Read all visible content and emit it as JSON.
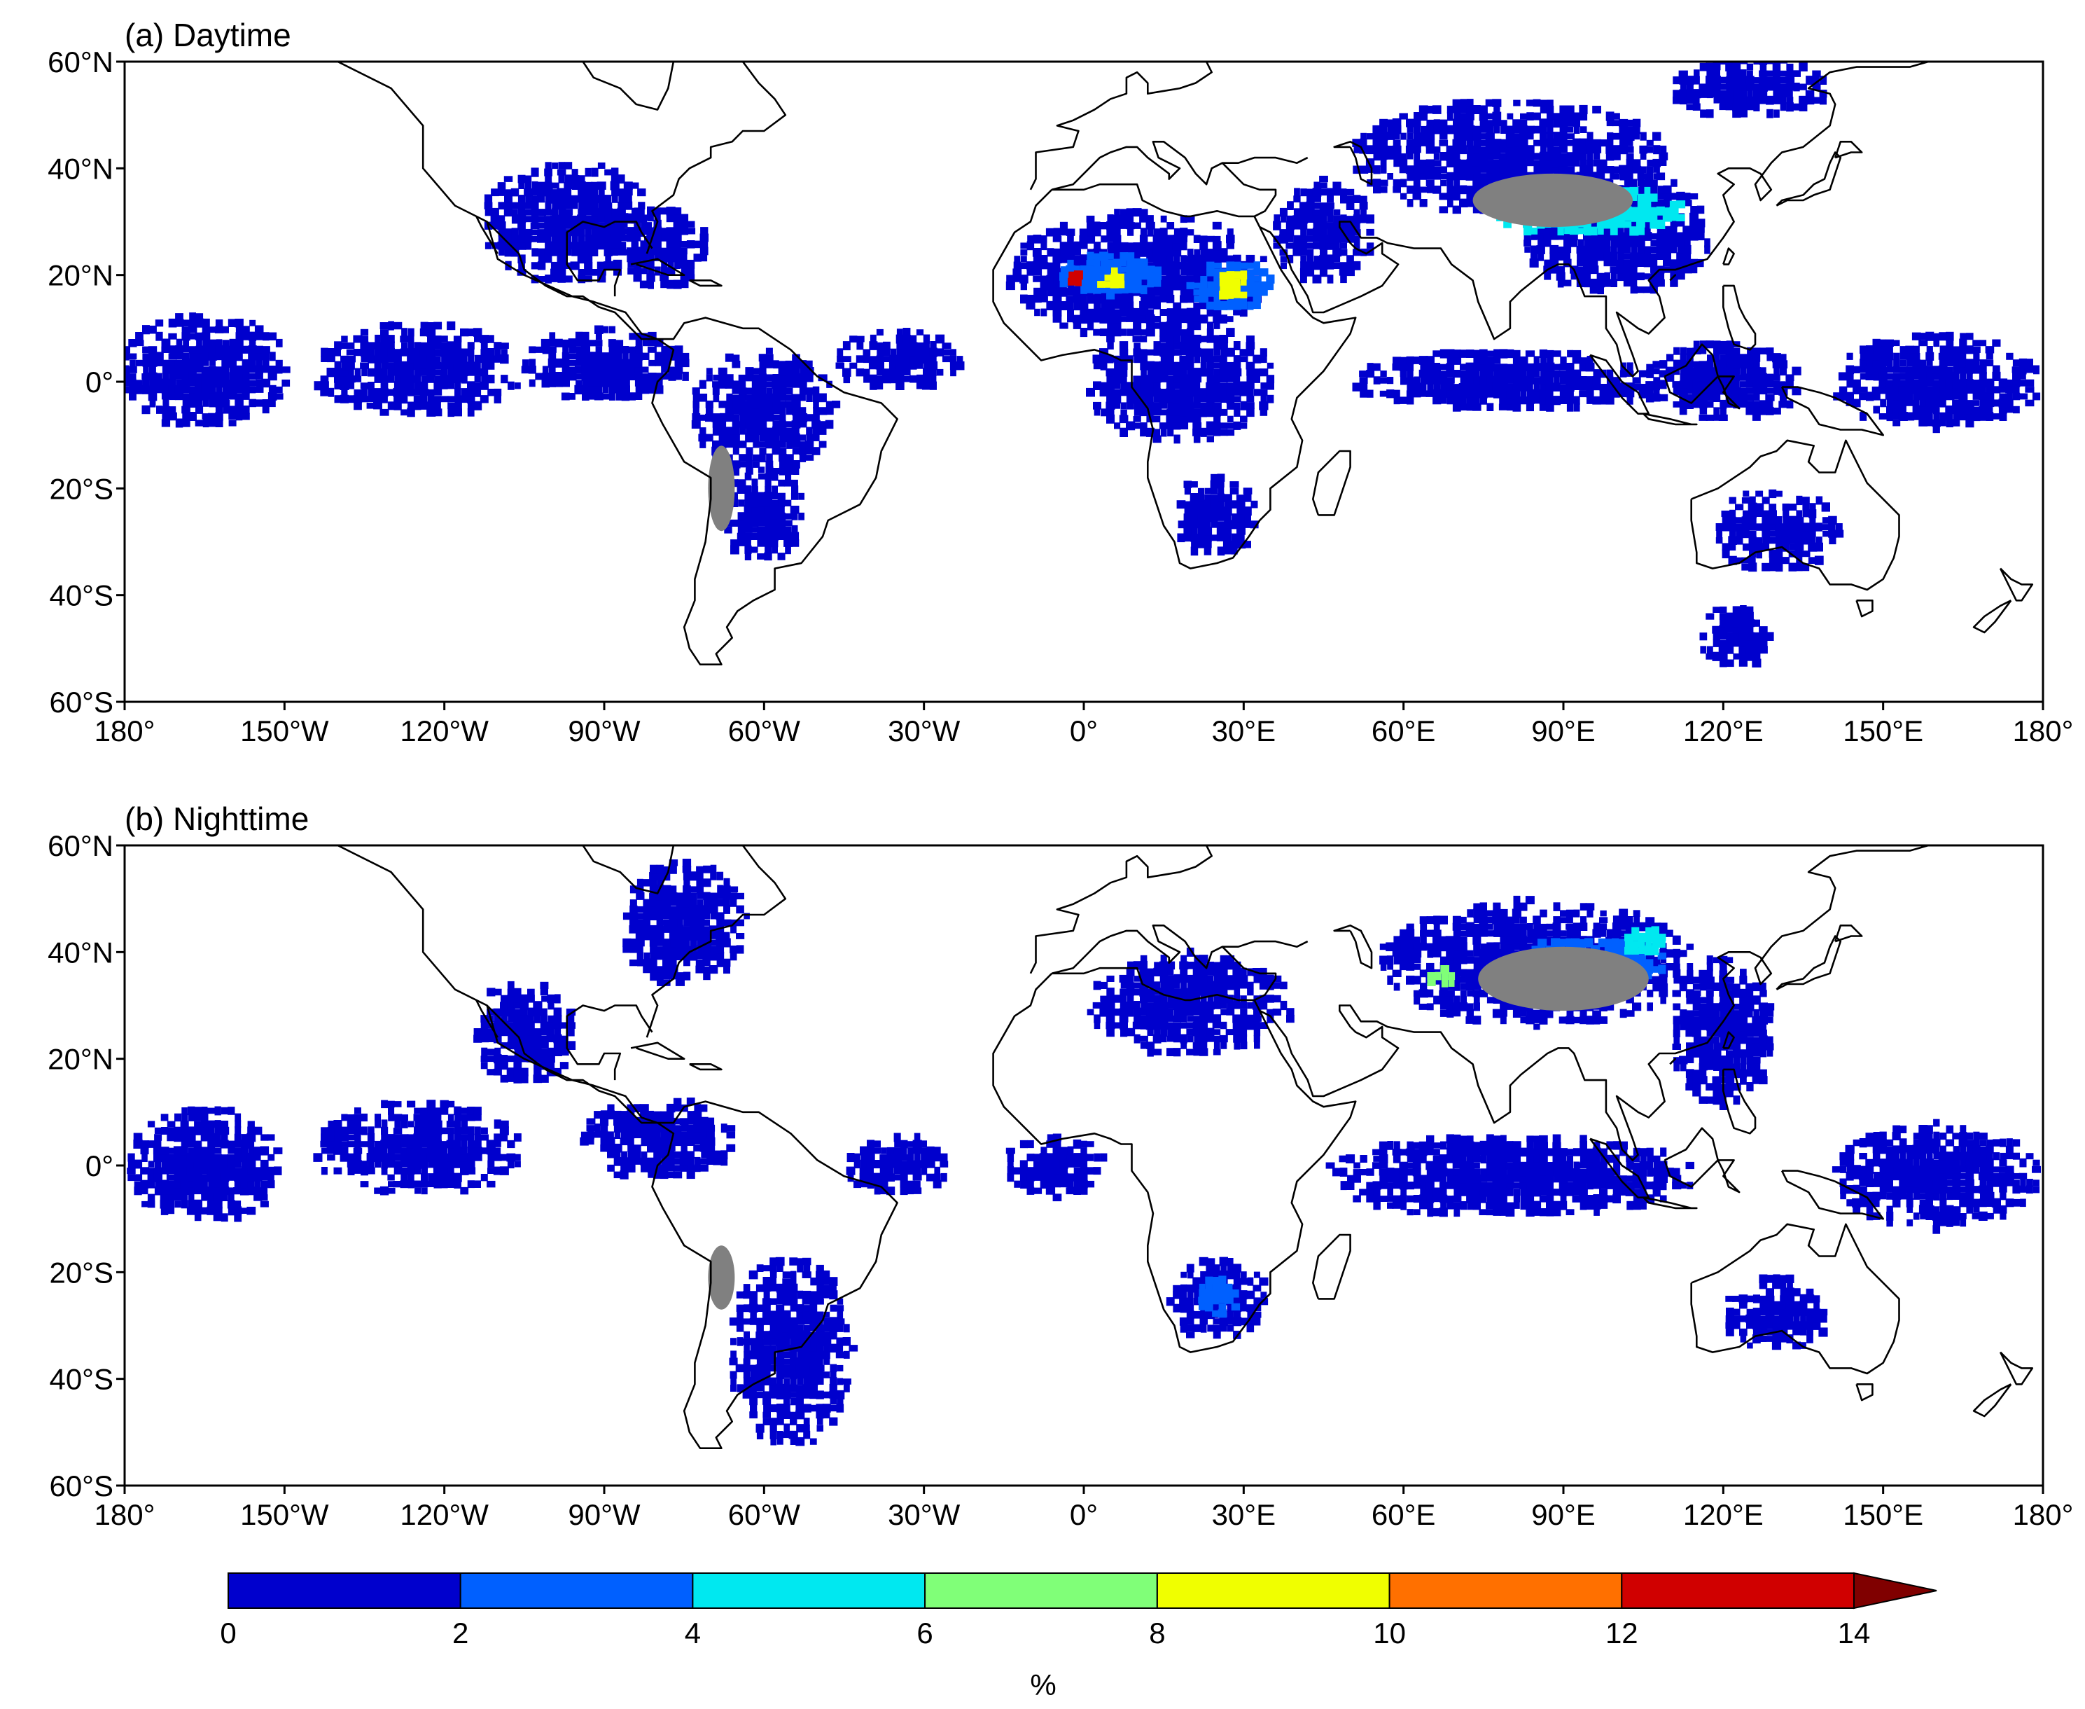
{
  "panels": [
    {
      "title": "(a) Daytime",
      "blobs": [
        {
          "lon": -97,
          "lat": 30,
          "rx": 16,
          "ry": 12,
          "v": 1
        },
        {
          "lon": -80,
          "lat": 25,
          "rx": 10,
          "ry": 8,
          "v": 1
        },
        {
          "lon": -165,
          "lat": 2,
          "rx": 16,
          "ry": 11,
          "v": 1
        },
        {
          "lon": -125,
          "lat": 2,
          "rx": 20,
          "ry": 9,
          "v": 1
        },
        {
          "lon": -90,
          "lat": 3,
          "rx": 16,
          "ry": 7,
          "v": 1
        },
        {
          "lon": -60,
          "lat": -6,
          "rx": 14,
          "ry": 12,
          "v": 1
        },
        {
          "lon": -60,
          "lat": -25,
          "rx": 8,
          "ry": 9,
          "v": 1
        },
        {
          "lon": -35,
          "lat": 4,
          "rx": 12,
          "ry": 6,
          "v": 1
        },
        {
          "lon": 10,
          "lat": 20,
          "rx": 25,
          "ry": 12,
          "v": 1
        },
        {
          "lon": 18,
          "lat": 0,
          "rx": 18,
          "ry": 12,
          "v": 1
        },
        {
          "lon": 25,
          "lat": -25,
          "rx": 8,
          "ry": 8,
          "v": 1
        },
        {
          "lon": 45,
          "lat": 28,
          "rx": 10,
          "ry": 10,
          "v": 1
        },
        {
          "lon": 80,
          "lat": 42,
          "rx": 30,
          "ry": 11,
          "v": 1
        },
        {
          "lon": 100,
          "lat": 28,
          "rx": 18,
          "ry": 12,
          "v": 1
        },
        {
          "lon": 80,
          "lat": 0,
          "rx": 30,
          "ry": 6,
          "v": 1
        },
        {
          "lon": 120,
          "lat": 0,
          "rx": 15,
          "ry": 8,
          "v": 1
        },
        {
          "lon": 160,
          "lat": 0,
          "rx": 20,
          "ry": 9,
          "v": 1
        },
        {
          "lon": 125,
          "lat": 55,
          "rx": 15,
          "ry": 6,
          "v": 1
        },
        {
          "lon": 130,
          "lat": -28,
          "rx": 12,
          "ry": 8,
          "v": 1
        },
        {
          "lon": 122,
          "lat": -48,
          "rx": 7,
          "ry": 6,
          "v": 1
        },
        {
          "lon": 5,
          "lat": 20,
          "rx": 10,
          "ry": 4,
          "v": 2
        },
        {
          "lon": 28,
          "lat": 18,
          "rx": 8,
          "ry": 5,
          "v": 2
        },
        {
          "lon": 95,
          "lat": 32,
          "rx": 18,
          "ry": 5,
          "v": 3
        },
        {
          "lon": 5,
          "lat": 19,
          "rx": 3,
          "ry": 2,
          "v": 5
        },
        {
          "lon": 28,
          "lat": 18,
          "rx": 3,
          "ry": 3,
          "v": 5
        },
        {
          "lon": -2,
          "lat": 19,
          "rx": 1.5,
          "ry": 1.5,
          "v": 7
        }
      ],
      "gray_areas": [
        {
          "lon": 88,
          "lat": 34,
          "rx": 15,
          "ry": 5
        },
        {
          "lon": -68,
          "lat": -20,
          "rx": 2.5,
          "ry": 8
        }
      ]
    },
    {
      "title": "(b) Nighttime",
      "blobs": [
        {
          "lon": -75,
          "lat": 45,
          "rx": 12,
          "ry": 12,
          "v": 1
        },
        {
          "lon": -105,
          "lat": 25,
          "rx": 10,
          "ry": 10,
          "v": 1
        },
        {
          "lon": -165,
          "lat": 0,
          "rx": 15,
          "ry": 11,
          "v": 1
        },
        {
          "lon": -125,
          "lat": 3,
          "rx": 20,
          "ry": 9,
          "v": 1
        },
        {
          "lon": -80,
          "lat": 5,
          "rx": 15,
          "ry": 8,
          "v": 1
        },
        {
          "lon": -35,
          "lat": 0,
          "rx": 10,
          "ry": 6,
          "v": 1
        },
        {
          "lon": -55,
          "lat": -35,
          "rx": 12,
          "ry": 18,
          "v": 1
        },
        {
          "lon": -5,
          "lat": 0,
          "rx": 10,
          "ry": 6,
          "v": 1
        },
        {
          "lon": 25,
          "lat": -25,
          "rx": 10,
          "ry": 8,
          "v": 1
        },
        {
          "lon": 20,
          "lat": 30,
          "rx": 20,
          "ry": 10,
          "v": 1
        },
        {
          "lon": 85,
          "lat": 38,
          "rx": 30,
          "ry": 12,
          "v": 1
        },
        {
          "lon": 80,
          "lat": -2,
          "rx": 35,
          "ry": 8,
          "v": 1
        },
        {
          "lon": 160,
          "lat": -2,
          "rx": 20,
          "ry": 10,
          "v": 1
        },
        {
          "lon": 130,
          "lat": -28,
          "rx": 10,
          "ry": 7,
          "v": 1
        },
        {
          "lon": 120,
          "lat": 25,
          "rx": 10,
          "ry": 14,
          "v": 1
        },
        {
          "lon": 95,
          "lat": 38,
          "rx": 14,
          "ry": 5,
          "v": 2
        },
        {
          "lon": 25,
          "lat": -25,
          "rx": 4,
          "ry": 4,
          "v": 2
        },
        {
          "lon": 105,
          "lat": 42,
          "rx": 4,
          "ry": 3,
          "v": 3
        },
        {
          "lon": 67,
          "lat": 35,
          "rx": 3,
          "ry": 2,
          "v": 4
        }
      ],
      "gray_areas": [
        {
          "lon": 90,
          "lat": 35,
          "rx": 16,
          "ry": 6
        },
        {
          "lon": -68,
          "lat": -21,
          "rx": 2.5,
          "ry": 6
        }
      ]
    }
  ],
  "axes": {
    "lon_range": [
      -180,
      180
    ],
    "lat_range": [
      -60,
      60
    ],
    "x_ticks": [
      {
        "value": -180,
        "label": "180°"
      },
      {
        "value": -150,
        "label": "150°W"
      },
      {
        "value": -120,
        "label": "120°W"
      },
      {
        "value": -90,
        "label": "90°W"
      },
      {
        "value": -60,
        "label": "60°W"
      },
      {
        "value": -30,
        "label": "30°W"
      },
      {
        "value": 0,
        "label": "0°"
      },
      {
        "value": 30,
        "label": "30°E"
      },
      {
        "value": 60,
        "label": "60°E"
      },
      {
        "value": 90,
        "label": "90°E"
      },
      {
        "value": 120,
        "label": "120°E"
      },
      {
        "value": 150,
        "label": "150°E"
      },
      {
        "value": 180,
        "label": "180°"
      }
    ],
    "y_ticks": [
      {
        "value": 60,
        "label": "60°N"
      },
      {
        "value": 40,
        "label": "40°N"
      },
      {
        "value": 20,
        "label": "20°N"
      },
      {
        "value": 0,
        "label": "0°"
      },
      {
        "value": -20,
        "label": "20°S"
      },
      {
        "value": -40,
        "label": "40°S"
      },
      {
        "value": -60,
        "label": "60°S"
      }
    ]
  },
  "colorbar": {
    "levels": [
      0,
      2,
      4,
      6,
      8,
      10,
      12,
      14
    ],
    "labels": [
      "0",
      "2",
      "4",
      "6",
      "8",
      "10",
      "12",
      "14"
    ],
    "colors": [
      "#0000cd",
      "#0060ff",
      "#00e8f0",
      "#80ff78",
      "#f0ff00",
      "#ff7000",
      "#d00000"
    ],
    "extend_color": "#800000",
    "unit": "%"
  },
  "colors": {
    "gray_mask": "#808080",
    "coastline": "#000000"
  }
}
